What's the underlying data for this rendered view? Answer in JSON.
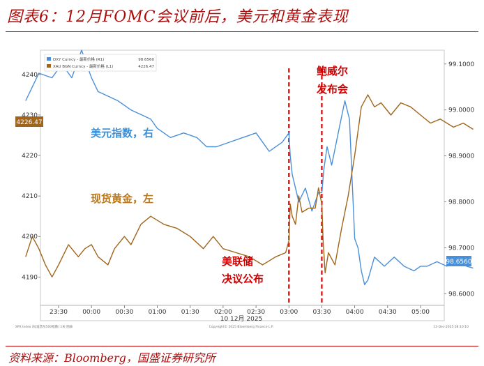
{
  "title": "图表6：12月FOMC会议前后，美元和黄金表现",
  "source": "资料来源：Bloomberg，国盛证券研究所",
  "chart_data": {
    "type": "line",
    "x_ticks": [
      "23:30",
      "00:00",
      "00:30",
      "01:00",
      "01:30",
      "02:00",
      "02:30",
      "03:00",
      "03:30",
      "04:00",
      "04:30",
      "05:00"
    ],
    "x_date_label": "10 12月 2025",
    "left_axis": {
      "ticks": [
        4240,
        4230,
        4220,
        4210,
        4200,
        4190
      ],
      "ylim": [
        4183,
        4246
      ]
    },
    "right_axis": {
      "ticks": [
        "99.1000",
        "99.0000",
        "98.9000",
        "98.8000",
        "98.7000",
        "98.6000"
      ],
      "ylim": [
        98.575,
        99.13
      ]
    },
    "legend": [
      {
        "name": "DXY Curncy - 最新价格 (R1)",
        "value": "98.6560",
        "color": "#4a90d9"
      },
      {
        "name": "XAU BGN Curncy - 最新价格 (L1)",
        "value": "4226.47",
        "color": "#a0651b"
      }
    ],
    "last_value_left": "4226.47",
    "last_value_right": "98.6560",
    "annotations": [
      {
        "text": "美元指数，右",
        "color": "#3a8fd6"
      },
      {
        "text": "现货黄金，左",
        "color": "#b7791f"
      },
      {
        "text": "美联储决议公布",
        "color": "#d00000"
      },
      {
        "text": "鲍威尔发布会",
        "color": "#d00000"
      }
    ],
    "vlines": [
      "03:00",
      "03:30"
    ],
    "footer_left": "SPX Index (标准普尔500指数) 1天 图表",
    "footer_center": "Copyright© 2025 Bloomberg Finance L.P.",
    "footer_right": "11-Dec-2025 08:10:10",
    "series": [
      {
        "name": "DXY Curncy",
        "color": "#4a90d9",
        "x": [
          23.0,
          23.1,
          23.2,
          23.4,
          23.55,
          23.7,
          23.85,
          24.0,
          24.1,
          24.25,
          24.4,
          24.5,
          24.6,
          24.75,
          24.9,
          25.0,
          25.2,
          25.4,
          25.6,
          25.75,
          25.9,
          26.1,
          26.3,
          26.5,
          26.7,
          26.9,
          27.0,
          27.02,
          27.05,
          27.1,
          27.15,
          27.25,
          27.35,
          27.45,
          27.5,
          27.53,
          27.58,
          27.65,
          27.75,
          27.85,
          27.92,
          28.0,
          28.05,
          28.1,
          28.15,
          28.2,
          28.3,
          28.45,
          28.6,
          28.75,
          28.9,
          29.0,
          29.1,
          29.25,
          29.4,
          29.55,
          29.7,
          29.8
        ],
        "y": [
          99.02,
          99.05,
          99.08,
          99.07,
          99.1,
          99.07,
          99.13,
          99.07,
          99.04,
          99.03,
          99.02,
          99.01,
          99.0,
          98.99,
          98.98,
          98.96,
          98.94,
          98.95,
          98.94,
          98.92,
          98.92,
          98.93,
          98.94,
          98.95,
          98.91,
          98.93,
          98.95,
          98.9,
          98.86,
          98.83,
          98.8,
          98.83,
          98.78,
          98.82,
          98.82,
          98.87,
          98.92,
          98.88,
          98.95,
          99.02,
          98.98,
          98.72,
          98.7,
          98.65,
          98.62,
          98.63,
          98.68,
          98.66,
          98.68,
          98.66,
          98.65,
          98.66,
          98.66,
          98.67,
          98.66,
          98.67,
          98.66,
          98.656
        ]
      },
      {
        "name": "XAU BGN Curncy",
        "color": "#a0651b",
        "x": [
          23.0,
          23.1,
          23.2,
          23.3,
          23.4,
          23.5,
          23.65,
          23.8,
          23.9,
          24.0,
          24.1,
          24.25,
          24.35,
          24.5,
          24.6,
          24.75,
          24.9,
          25.1,
          25.3,
          25.5,
          25.7,
          25.85,
          26.0,
          26.2,
          26.4,
          26.6,
          26.8,
          26.95,
          27.0,
          27.02,
          27.05,
          27.1,
          27.15,
          27.2,
          27.3,
          27.4,
          27.45,
          27.5,
          27.52,
          27.55,
          27.6,
          27.7,
          27.8,
          27.9,
          28.0,
          28.1,
          28.2,
          28.3,
          28.4,
          28.55,
          28.7,
          28.85,
          29.0,
          29.15,
          29.3,
          29.5,
          29.65,
          29.8
        ],
        "y": [
          4195,
          4200,
          4197,
          4193,
          4190,
          4193,
          4198,
          4195,
          4197,
          4198,
          4195,
          4193,
          4197,
          4200,
          4198,
          4203,
          4205,
          4203,
          4202,
          4200,
          4197,
          4200,
          4197,
          4196,
          4195,
          4193,
          4195,
          4196,
          4199,
          4208,
          4205,
          4203,
          4210,
          4206,
          4207,
          4207,
          4212,
          4208,
          4199,
          4191,
          4196,
          4193,
          4202,
          4210,
          4220,
          4232,
          4235,
          4232,
          4233,
          4230,
          4233,
          4232,
          4230,
          4228,
          4229,
          4227,
          4228,
          4226.47
        ]
      }
    ]
  }
}
